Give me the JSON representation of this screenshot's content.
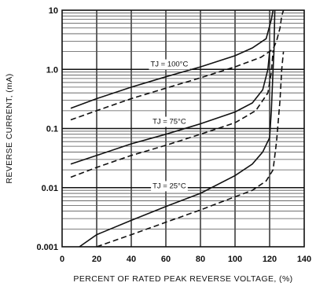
{
  "chart_data": {
    "type": "line",
    "title": "",
    "xlabel": "PERCENT OF RATED PEAK REVERSE VOLTAGE, (%)",
    "ylabel": "REVERSE CURRENT, (mA)",
    "x_ticks": [
      "0",
      "20",
      "40",
      "60",
      "80",
      "100",
      "120",
      "140"
    ],
    "y_ticks": [
      "10",
      "1.0",
      "0.1",
      "0.01",
      "0.001"
    ],
    "xlim": [
      0,
      140
    ],
    "ylim": [
      0.001,
      10
    ],
    "y_scale": "log",
    "grid": true,
    "annotations": [
      {
        "text": "TJ = 100°C",
        "x": 62,
        "y": 1.12
      },
      {
        "text": "TJ = 75°C",
        "x": 62,
        "y": 0.12
      },
      {
        "text": "TJ = 25°C",
        "x": 62,
        "y": 0.0098
      }
    ],
    "series": [
      {
        "style": "solid",
        "points": [
          [
            5,
            0.22
          ],
          [
            20,
            0.32
          ],
          [
            40,
            0.5
          ],
          [
            60,
            0.75
          ],
          [
            80,
            1.1
          ],
          [
            100,
            1.7
          ],
          [
            110,
            2.3
          ],
          [
            118,
            3.3
          ],
          [
            121,
            7
          ],
          [
            122,
            10
          ]
        ]
      },
      {
        "style": "dashed",
        "points": [
          [
            5,
            0.14
          ],
          [
            20,
            0.2
          ],
          [
            40,
            0.32
          ],
          [
            60,
            0.48
          ],
          [
            80,
            0.72
          ],
          [
            100,
            1.1
          ],
          [
            115,
            1.6
          ],
          [
            122,
            2.2
          ],
          [
            124,
            3
          ],
          [
            126,
            5
          ],
          [
            127,
            8
          ],
          [
            128,
            10
          ]
        ]
      },
      {
        "style": "solid",
        "points": [
          [
            5,
            0.025
          ],
          [
            20,
            0.035
          ],
          [
            40,
            0.055
          ],
          [
            60,
            0.08
          ],
          [
            80,
            0.12
          ],
          [
            100,
            0.19
          ],
          [
            110,
            0.27
          ],
          [
            116,
            0.45
          ],
          [
            119,
            1.0
          ],
          [
            120,
            2.0
          ]
        ]
      },
      {
        "style": "dashed",
        "points": [
          [
            5,
            0.015
          ],
          [
            20,
            0.022
          ],
          [
            40,
            0.035
          ],
          [
            60,
            0.052
          ],
          [
            80,
            0.08
          ],
          [
            100,
            0.125
          ],
          [
            112,
            0.2
          ],
          [
            119,
            0.4
          ],
          [
            121,
            0.9
          ],
          [
            122,
            2.1
          ]
        ]
      },
      {
        "style": "solid",
        "points": [
          [
            10,
            0.001
          ],
          [
            20,
            0.0016
          ],
          [
            40,
            0.0028
          ],
          [
            60,
            0.0048
          ],
          [
            80,
            0.008
          ],
          [
            100,
            0.016
          ],
          [
            110,
            0.025
          ],
          [
            116,
            0.04
          ],
          [
            120,
            0.07
          ],
          [
            121,
            0.2
          ],
          [
            122,
            1.0
          ],
          [
            122.5,
            2.0
          ],
          [
            123,
            10
          ]
        ]
      },
      {
        "style": "dashed",
        "points": [
          [
            20,
            0.001
          ],
          [
            40,
            0.0016
          ],
          [
            60,
            0.0026
          ],
          [
            80,
            0.0042
          ],
          [
            100,
            0.007
          ],
          [
            110,
            0.009
          ],
          [
            118,
            0.013
          ],
          [
            122,
            0.02
          ],
          [
            124,
            0.06
          ],
          [
            126,
            0.3
          ],
          [
            127,
            1.0
          ],
          [
            128,
            2.0
          ]
        ]
      }
    ]
  }
}
